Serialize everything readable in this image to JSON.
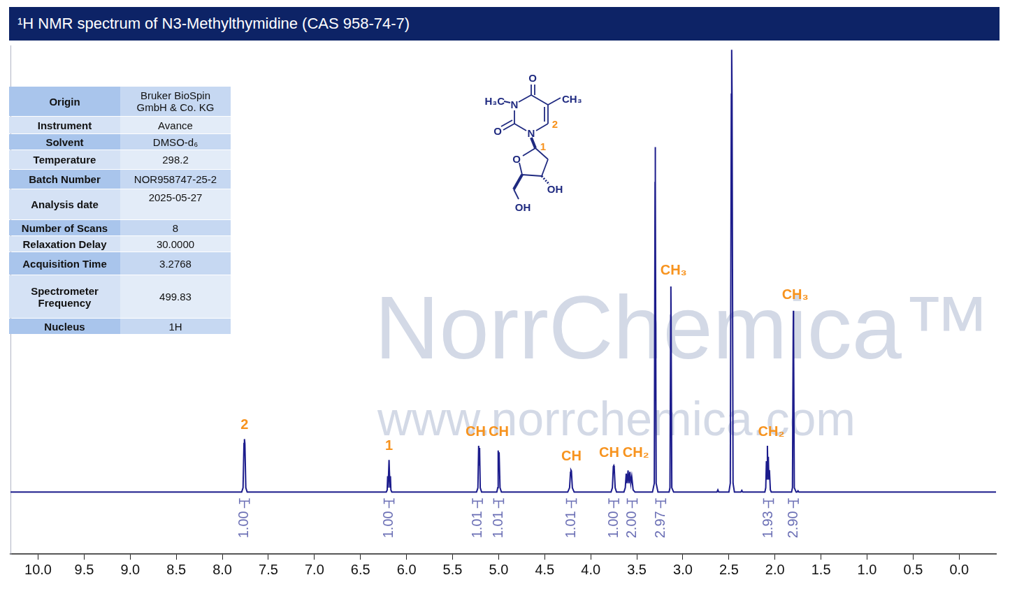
{
  "header": {
    "title": "¹H NMR spectrum of N3-Methylthymidine (CAS 958-74-7)"
  },
  "info_table": {
    "rows": [
      [
        "Origin",
        "Bruker BioSpin GmbH & Co. KG"
      ],
      [
        "Instrument",
        "Avance"
      ],
      [
        "Solvent",
        "DMSO-d₆"
      ],
      [
        "Temperature",
        "298.2"
      ],
      [
        "Batch Number",
        "NOR958747-25-2"
      ],
      [
        "Analysis date",
        "2025-05-27"
      ],
      [
        "Number of Scans",
        "8"
      ],
      [
        "Relaxation Delay",
        "30.0000"
      ],
      [
        "Acquisition Time",
        "3.2768"
      ],
      [
        "Spectrometer Frequency",
        "499.83"
      ],
      [
        "Nucleus",
        "1H"
      ]
    ]
  },
  "structure": {
    "labels": [
      "O",
      "H₃C",
      "N",
      "CH₃",
      "O",
      "N",
      "2",
      "1",
      "O",
      "OH",
      "OH"
    ]
  },
  "watermark": {
    "name": "NorrChemica™",
    "url": "www.norrchemica.com"
  },
  "chart_data": {
    "type": "line",
    "color": "#1c1c8c",
    "grid": false,
    "tick_labels": "x",
    "xlim": [
      10.3,
      -0.4
    ],
    "xticks": [
      {
        "value": 10,
        "label": "10.0"
      },
      9.5,
      {
        "value": 9,
        "label": "9.0"
      },
      8.5,
      {
        "value": 8,
        "label": "8.0"
      },
      7.5,
      {
        "value": 7,
        "label": "7.0"
      },
      6.5,
      {
        "value": 6,
        "label": "6.0"
      },
      5.5,
      {
        "value": 5,
        "label": "5.0"
      },
      4.5,
      {
        "value": 4,
        "label": "4.0"
      },
      3.5,
      {
        "value": 3,
        "label": "3.0"
      },
      2.5,
      {
        "value": 2,
        "label": "2.0"
      },
      1.5,
      {
        "value": 1,
        "label": "1.0"
      },
      0.5,
      {
        "value": 0,
        "label": "0.0"
      }
    ],
    "ylim": [
      -14,
      101
    ],
    "x": [
      10.3,
      7.79,
      7.775,
      7.765,
      7.76,
      7.755,
      7.745,
      7.73,
      6.22,
      6.21,
      6.205,
      6.2,
      6.19,
      6.18,
      6.175,
      6.17,
      6.16,
      5.24,
      5.225,
      5.217,
      5.212,
      5.207,
      5.2,
      5.185,
      5.02,
      5.01,
      5.005,
      5.0,
      4.995,
      4.985,
      4.97,
      4.25,
      4.23,
      4.22,
      4.215,
      4.21,
      4.2,
      4.18,
      3.78,
      3.765,
      3.755,
      3.75,
      3.745,
      3.735,
      3.72,
      3.64,
      3.625,
      3.615,
      3.605,
      3.595,
      3.585,
      3.575,
      3.565,
      3.555,
      3.54,
      3.52,
      3.33,
      3.31,
      3.302,
      3.3,
      3.298,
      3.29,
      3.27,
      3.15,
      3.14,
      3.132,
      3.13,
      3.128,
      3.12,
      3.1,
      2.63,
      2.62,
      2.61,
      2.5,
      2.485,
      2.474,
      2.47,
      2.466,
      2.455,
      2.44,
      2.37,
      2.36,
      2.35,
      2.11,
      2.1,
      2.093,
      2.088,
      2.082,
      2.077,
      2.072,
      2.066,
      2.06,
      2.05,
      2.04,
      1.82,
      1.81,
      1.802,
      1.8,
      1.798,
      1.79,
      1.77,
      1.76,
      1.75,
      1.74,
      -0.4
    ],
    "values": [
      0,
      0,
      1,
      11,
      12,
      11,
      1,
      0,
      0,
      0.5,
      3.6,
      1,
      7.3,
      1,
      3.6,
      0.5,
      0,
      0,
      1,
      10.5,
      6,
      10,
      1,
      0,
      0,
      1,
      9.4,
      7,
      9,
      1,
      0,
      0,
      1,
      4.5,
      5,
      4.8,
      1,
      0,
      0,
      1,
      5.8,
      6,
      5.5,
      1,
      0,
      0,
      1,
      4.2,
      2,
      4.9,
      2,
      4.6,
      2,
      3.5,
      0.5,
      0,
      0,
      2,
      70,
      78,
      70,
      2,
      0,
      0,
      1,
      40,
      46.5,
      40,
      1,
      0,
      0,
      0.5,
      0,
      0,
      2,
      90,
      100,
      90,
      2,
      0,
      0,
      0.4,
      0,
      0,
      1,
      7,
      3,
      10.5,
      4,
      8,
      3,
      5,
      0.5,
      0,
      0,
      1,
      36,
      41,
      36,
      1,
      0,
      0,
      0.3,
      0,
      0
    ],
    "annotations": [
      {
        "text": "2",
        "x": 7.76,
        "y": 13.5
      },
      {
        "text": "1",
        "x": 6.19,
        "y": 8.8
      },
      {
        "text": "CH",
        "x": 5.25,
        "y": 12
      },
      {
        "text": "CH",
        "x": 5.0,
        "y": 12
      },
      {
        "text": "CH",
        "x": 4.21,
        "y": 6.5
      },
      {
        "text": "CH",
        "x": 3.8,
        "y": 7.3
      },
      {
        "text": "CH₂",
        "x": 3.51,
        "y": 7.3
      },
      {
        "text": "CH₃",
        "x": 3.1,
        "y": 48.5
      },
      {
        "text": "CH₂",
        "x": 2.04,
        "y": 12
      },
      {
        "text": "CH₃",
        "x": 1.78,
        "y": 43
      }
    ],
    "integrals": [
      {
        "x": 7.76,
        "label": "1.00"
      },
      {
        "x": 6.19,
        "label": "1.00"
      },
      {
        "x": 5.23,
        "label": "1.01"
      },
      {
        "x": 5.0,
        "label": "1.01"
      },
      {
        "x": 4.21,
        "label": "1.01"
      },
      {
        "x": 3.75,
        "label": "1.00"
      },
      {
        "x": 3.55,
        "label": "2.00"
      },
      {
        "x": 3.24,
        "label": "2.97"
      },
      {
        "x": 2.07,
        "label": "1.93"
      },
      {
        "x": 1.8,
        "label": "2.90"
      }
    ]
  }
}
